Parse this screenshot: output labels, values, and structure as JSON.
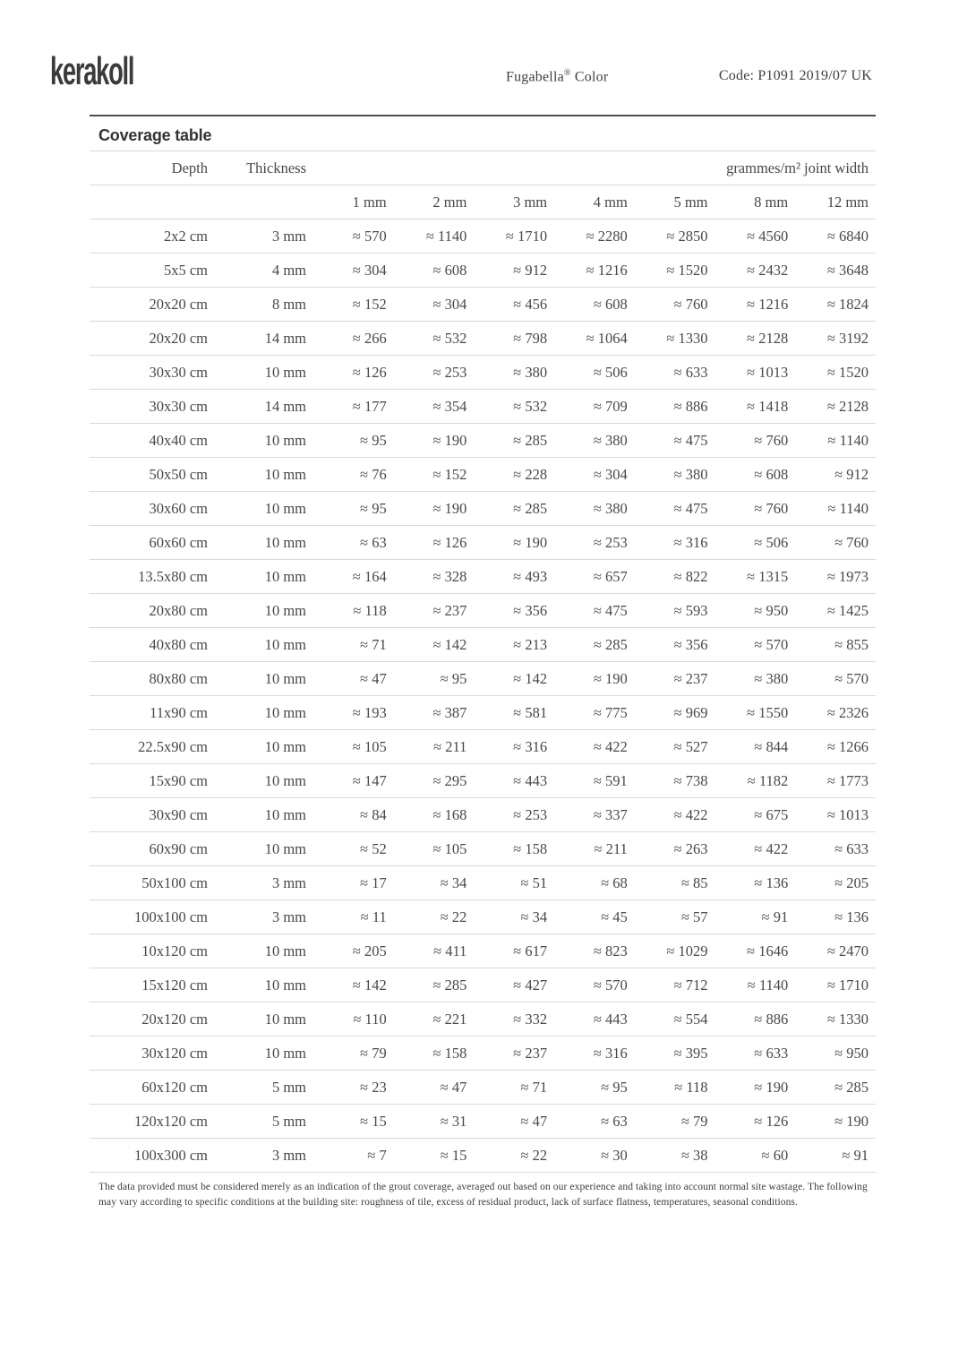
{
  "header": {
    "logo": "kerakoll",
    "product_name": "Fugabella",
    "product_mark": "®",
    "product_suffix": " Color",
    "code": "Code: P1091 2019/07 UK"
  },
  "section_title": "Coverage table",
  "table": {
    "col_headers": {
      "depth": "Depth",
      "thickness": "Thickness",
      "group": "grammes/m² joint width"
    },
    "joint_widths": [
      "1 mm",
      "2 mm",
      "3 mm",
      "4 mm",
      "5 mm",
      "8 mm",
      "12 mm"
    ],
    "approx_symbol": "≈",
    "rows": [
      {
        "depth": "2x2 cm",
        "thickness": "3 mm",
        "values": [
          570,
          1140,
          1710,
          2280,
          2850,
          4560,
          6840
        ]
      },
      {
        "depth": "5x5 cm",
        "thickness": "4 mm",
        "values": [
          304,
          608,
          912,
          1216,
          1520,
          2432,
          3648
        ]
      },
      {
        "depth": "20x20 cm",
        "thickness": "8 mm",
        "values": [
          152,
          304,
          456,
          608,
          760,
          1216,
          1824
        ]
      },
      {
        "depth": "20x20 cm",
        "thickness": "14 mm",
        "values": [
          266,
          532,
          798,
          1064,
          1330,
          2128,
          3192
        ]
      },
      {
        "depth": "30x30 cm",
        "thickness": "10 mm",
        "values": [
          126,
          253,
          380,
          506,
          633,
          1013,
          1520
        ]
      },
      {
        "depth": "30x30 cm",
        "thickness": "14 mm",
        "values": [
          177,
          354,
          532,
          709,
          886,
          1418,
          2128
        ]
      },
      {
        "depth": "40x40 cm",
        "thickness": "10 mm",
        "values": [
          95,
          190,
          285,
          380,
          475,
          760,
          1140
        ]
      },
      {
        "depth": "50x50 cm",
        "thickness": "10 mm",
        "values": [
          76,
          152,
          228,
          304,
          380,
          608,
          912
        ]
      },
      {
        "depth": "30x60 cm",
        "thickness": "10 mm",
        "values": [
          95,
          190,
          285,
          380,
          475,
          760,
          1140
        ]
      },
      {
        "depth": "60x60 cm",
        "thickness": "10 mm",
        "values": [
          63,
          126,
          190,
          253,
          316,
          506,
          760
        ]
      },
      {
        "depth": "13.5x80 cm",
        "thickness": "10 mm",
        "values": [
          164,
          328,
          493,
          657,
          822,
          1315,
          1973
        ]
      },
      {
        "depth": "20x80 cm",
        "thickness": "10 mm",
        "values": [
          118,
          237,
          356,
          475,
          593,
          950,
          1425
        ]
      },
      {
        "depth": "40x80 cm",
        "thickness": "10 mm",
        "values": [
          71,
          142,
          213,
          285,
          356,
          570,
          855
        ]
      },
      {
        "depth": "80x80 cm",
        "thickness": "10 mm",
        "values": [
          47,
          95,
          142,
          190,
          237,
          380,
          570
        ]
      },
      {
        "depth": "11x90 cm",
        "thickness": "10 mm",
        "values": [
          193,
          387,
          581,
          775,
          969,
          1550,
          2326
        ]
      },
      {
        "depth": "22.5x90 cm",
        "thickness": "10 mm",
        "values": [
          105,
          211,
          316,
          422,
          527,
          844,
          1266
        ]
      },
      {
        "depth": "15x90 cm",
        "thickness": "10 mm",
        "values": [
          147,
          295,
          443,
          591,
          738,
          1182,
          1773
        ]
      },
      {
        "depth": "30x90 cm",
        "thickness": "10 mm",
        "values": [
          84,
          168,
          253,
          337,
          422,
          675,
          1013
        ]
      },
      {
        "depth": "60x90 cm",
        "thickness": "10 mm",
        "values": [
          52,
          105,
          158,
          211,
          263,
          422,
          633
        ]
      },
      {
        "depth": "50x100 cm",
        "thickness": "3 mm",
        "values": [
          17,
          34,
          51,
          68,
          85,
          136,
          205
        ]
      },
      {
        "depth": "100x100 cm",
        "thickness": "3 mm",
        "values": [
          11,
          22,
          34,
          45,
          57,
          91,
          136
        ]
      },
      {
        "depth": "10x120 cm",
        "thickness": "10 mm",
        "values": [
          205,
          411,
          617,
          823,
          1029,
          1646,
          2470
        ]
      },
      {
        "depth": "15x120 cm",
        "thickness": "10 mm",
        "values": [
          142,
          285,
          427,
          570,
          712,
          1140,
          1710
        ]
      },
      {
        "depth": "20x120 cm",
        "thickness": "10 mm",
        "values": [
          110,
          221,
          332,
          443,
          554,
          886,
          1330
        ]
      },
      {
        "depth": "30x120 cm",
        "thickness": "10 mm",
        "values": [
          79,
          158,
          237,
          316,
          395,
          633,
          950
        ]
      },
      {
        "depth": "60x120 cm",
        "thickness": "5 mm",
        "values": [
          23,
          47,
          71,
          95,
          118,
          190,
          285
        ]
      },
      {
        "depth": "120x120 cm",
        "thickness": "5 mm",
        "values": [
          15,
          31,
          47,
          63,
          79,
          126,
          190
        ]
      },
      {
        "depth": "100x300 cm",
        "thickness": "3 mm",
        "values": [
          7,
          15,
          22,
          30,
          38,
          60,
          91
        ]
      }
    ]
  },
  "footnote": "The data provided must be considered merely as an indication of the grout coverage, averaged out based on our experience and taking into account normal site wastage. The following may vary according to specific conditions at the building site: roughness of tile, excess of residual product, lack of surface flatness, temperatures, seasonal conditions."
}
